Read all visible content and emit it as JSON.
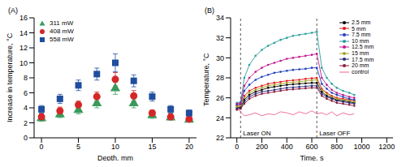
{
  "chart_data": [
    {
      "type": "scatter",
      "title": "(A)",
      "x_label": "Depth, mm",
      "y_label": "Increase in temperature, °C",
      "x": [
        0,
        2.5,
        5,
        7.5,
        10,
        12.5,
        15,
        17.5,
        20
      ],
      "xlim": [
        -1,
        21
      ],
      "xticks": [
        0,
        5,
        10,
        15,
        20
      ],
      "ylim": [
        0,
        16
      ],
      "yticks": [
        0,
        2,
        4,
        6,
        8,
        10,
        12,
        14,
        16
      ],
      "grid": false,
      "legend": "upper left",
      "series": [
        {
          "name": "311 mW",
          "color": "#3a9a5b",
          "marker": "triangle",
          "values": [
            2.6,
            3.1,
            3.7,
            4.6,
            6.6,
            4.6,
            3.0,
            2.7,
            2.4
          ],
          "errors": [
            0.4,
            0.4,
            0.5,
            0.6,
            0.8,
            0.6,
            0.4,
            0.3,
            0.3
          ]
        },
        {
          "name": "408 mW",
          "color": "#d62728",
          "marker": "circle",
          "values": [
            2.8,
            3.6,
            4.4,
            5.5,
            7.8,
            5.6,
            3.3,
            2.8,
            2.5
          ],
          "errors": [
            0.4,
            0.5,
            0.5,
            0.6,
            0.9,
            0.7,
            0.4,
            0.4,
            0.3
          ]
        },
        {
          "name": "558 mW",
          "color": "#1f4e9e",
          "marker": "square",
          "values": [
            3.8,
            5.2,
            7.0,
            8.5,
            10.0,
            7.6,
            5.5,
            3.8,
            3.3
          ],
          "errors": [
            0.5,
            0.6,
            0.7,
            0.8,
            1.2,
            0.8,
            0.6,
            0.5,
            0.4
          ]
        }
      ]
    },
    {
      "type": "line",
      "title": "(B)",
      "x_label": "Time, s",
      "y_label": "Temperature, °C",
      "x": [
        0,
        30,
        60,
        100,
        150,
        200,
        250,
        300,
        350,
        400,
        450,
        500,
        550,
        600,
        640,
        680,
        720,
        760,
        800,
        850,
        900,
        940
      ],
      "xlim": [
        -50,
        1250
      ],
      "xticks": [
        0,
        200,
        400,
        600,
        800,
        1000,
        1200
      ],
      "ylim": [
        22,
        34
      ],
      "yticks": [
        22,
        24,
        26,
        28,
        30,
        32,
        34
      ],
      "grid": false,
      "legend": "upper right",
      "annotations": [
        {
          "text": "Laser ON",
          "x": 30
        },
        {
          "text": "Laser OFF",
          "x": 640
        }
      ],
      "series": [
        {
          "name": "2.5 mm",
          "color": "#000000",
          "marker": "circle",
          "values": [
            25.0,
            25.1,
            25.8,
            26.3,
            26.6,
            26.8,
            27.0,
            27.1,
            27.2,
            27.3,
            27.35,
            27.4,
            27.45,
            27.5,
            27.5,
            26.6,
            26.2,
            26.0,
            25.8,
            25.7,
            25.6,
            25.5
          ]
        },
        {
          "name": "5 mm",
          "color": "#e41a1c",
          "marker": "circle",
          "values": [
            25.2,
            25.3,
            26.2,
            26.7,
            27.0,
            27.2,
            27.4,
            27.5,
            27.6,
            27.7,
            27.75,
            27.8,
            27.9,
            27.95,
            28.0,
            26.9,
            26.5,
            26.2,
            26.0,
            25.9,
            25.8,
            25.7
          ]
        },
        {
          "name": "7.5 mm",
          "color": "#1f3fbf",
          "marker": "circle",
          "values": [
            25.3,
            25.4,
            26.7,
            27.3,
            27.8,
            28.1,
            28.3,
            28.5,
            28.6,
            28.7,
            28.8,
            28.85,
            28.9,
            29.0,
            29.0,
            27.4,
            26.9,
            26.5,
            26.3,
            26.1,
            25.9,
            25.8
          ]
        },
        {
          "name": "10 mm",
          "color": "#2a9d9d",
          "marker": "circle",
          "values": [
            25.5,
            25.6,
            28.0,
            29.3,
            30.2,
            30.8,
            31.2,
            31.5,
            31.8,
            32.0,
            32.2,
            32.3,
            32.4,
            32.5,
            32.6,
            29.0,
            28.0,
            27.4,
            27.0,
            26.7,
            26.5,
            26.3
          ]
        },
        {
          "name": "12.5 mm",
          "color": "#c2188f",
          "marker": "circle",
          "values": [
            25.4,
            25.5,
            27.2,
            28.0,
            28.6,
            29.0,
            29.3,
            29.5,
            29.7,
            29.9,
            30.0,
            30.1,
            30.2,
            30.3,
            30.4,
            28.0,
            27.3,
            26.8,
            26.5,
            26.3,
            26.1,
            26.0
          ]
        },
        {
          "name": "15 mm",
          "color": "#a7a32a",
          "marker": "circle",
          "values": [
            25.1,
            25.2,
            26.0,
            26.5,
            26.8,
            27.0,
            27.2,
            27.3,
            27.4,
            27.5,
            27.55,
            27.6,
            27.7,
            27.75,
            27.8,
            26.8,
            26.4,
            26.1,
            25.9,
            25.8,
            25.7,
            25.6
          ]
        },
        {
          "name": "17.5 mm",
          "color": "#2b2b7a",
          "marker": "circle",
          "values": [
            24.9,
            25.0,
            25.6,
            26.1,
            26.4,
            26.6,
            26.7,
            26.8,
            26.9,
            27.0,
            27.05,
            27.1,
            27.15,
            27.2,
            27.2,
            26.4,
            26.1,
            25.9,
            25.7,
            25.6,
            25.5,
            25.4
          ]
        },
        {
          "name": "20 mm",
          "color": "#8b1a3a",
          "marker": "circle",
          "values": [
            24.8,
            24.9,
            25.4,
            25.9,
            26.2,
            26.4,
            26.5,
            26.6,
            26.7,
            26.8,
            26.85,
            26.9,
            26.95,
            27.0,
            27.0,
            26.2,
            25.9,
            25.7,
            25.5,
            25.4,
            25.3,
            25.2
          ]
        },
        {
          "name": "control",
          "color": "#f06292",
          "marker": "none",
          "values": [
            25.0,
            24.6,
            24.2,
            24.3,
            24.5,
            24.2,
            24.4,
            24.3,
            24.6,
            24.5,
            24.3,
            24.6,
            24.4,
            24.7,
            24.4,
            24.5,
            24.3,
            24.6,
            24.2,
            24.5,
            24.3,
            24.4
          ]
        }
      ]
    }
  ]
}
